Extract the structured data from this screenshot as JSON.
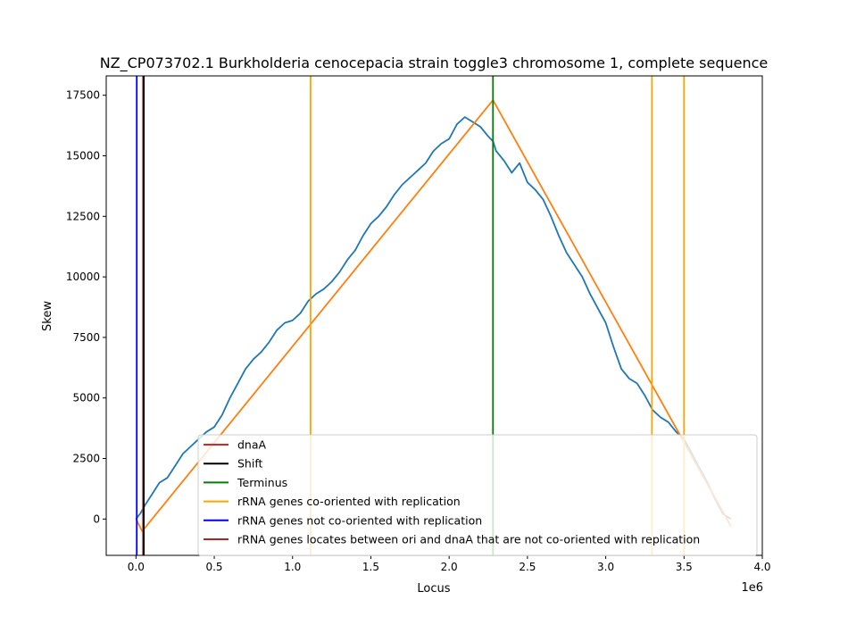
{
  "chart_data": {
    "type": "line",
    "title": "NZ_CP073702.1 Burkholderia cenocepacia strain toggle3 chromosome 1, complete sequence",
    "xlabel": "Locus",
    "ylabel": "Skew",
    "x_offset_label": "1e6",
    "xlim": [
      -0.19,
      4.0
    ],
    "ylim": [
      -1500,
      18300
    ],
    "x_ticks": [
      0.0,
      0.5,
      1.0,
      1.5,
      2.0,
      2.5,
      3.0,
      3.5,
      4.0
    ],
    "x_tick_labels": [
      "0.0",
      "0.5",
      "1.0",
      "1.5",
      "2.0",
      "2.5",
      "3.0",
      "3.5",
      "4.0"
    ],
    "y_ticks": [
      0,
      2500,
      5000,
      7500,
      10000,
      12500,
      15000,
      17500
    ],
    "y_tick_labels": [
      "0",
      "2500",
      "5000",
      "7500",
      "10000",
      "12500",
      "15000",
      "17500"
    ],
    "grid": false,
    "legend_position": "lower-right",
    "series": [
      {
        "name": "",
        "color": "#1f77b4",
        "x": [
          0.0,
          0.03,
          0.06,
          0.1,
          0.15,
          0.2,
          0.25,
          0.3,
          0.35,
          0.4,
          0.45,
          0.5,
          0.55,
          0.6,
          0.65,
          0.7,
          0.75,
          0.8,
          0.85,
          0.9,
          0.95,
          1.0,
          1.05,
          1.1,
          1.15,
          1.2,
          1.25,
          1.3,
          1.35,
          1.4,
          1.45,
          1.5,
          1.55,
          1.6,
          1.65,
          1.7,
          1.75,
          1.8,
          1.85,
          1.9,
          1.95,
          2.0,
          2.05,
          2.1,
          2.15,
          2.2,
          2.25,
          2.28,
          2.3,
          2.35,
          2.4,
          2.45,
          2.5,
          2.55,
          2.6,
          2.65,
          2.7,
          2.75,
          2.8,
          2.85,
          2.9,
          2.95,
          3.0,
          3.05,
          3.1,
          3.15,
          3.2,
          3.25,
          3.3,
          3.35,
          3.4,
          3.45,
          3.5,
          3.55,
          3.6,
          3.65,
          3.7,
          3.75,
          3.8
        ],
        "y": [
          0,
          250,
          600,
          1000,
          1500,
          1700,
          2200,
          2700,
          3000,
          3300,
          3600,
          3800,
          4300,
          5000,
          5600,
          6200,
          6600,
          6900,
          7300,
          7800,
          8100,
          8200,
          8500,
          9000,
          9300,
          9500,
          9800,
          10200,
          10700,
          11100,
          11700,
          12200,
          12500,
          12900,
          13400,
          13800,
          14100,
          14400,
          14700,
          15200,
          15500,
          15700,
          16300,
          16600,
          16400,
          16200,
          15800,
          15600,
          15200,
          14800,
          14300,
          14700,
          13900,
          13600,
          13200,
          12500,
          11700,
          11000,
          10500,
          10000,
          9300,
          8700,
          8100,
          7100,
          6200,
          5800,
          5600,
          5100,
          4500,
          4200,
          4000,
          3600,
          3300,
          2700,
          2100,
          1500,
          800,
          200,
          0
        ]
      },
      {
        "name": "",
        "color": "#ff7f0e",
        "x": [
          0.0,
          0.04,
          2.28,
          3.8
        ],
        "y": [
          0,
          -500,
          17300,
          -300
        ]
      }
    ],
    "vertical_lines": [
      {
        "name": "dnaA",
        "x": 0.045,
        "color": "#d62728"
      },
      {
        "name": "Shift",
        "x": 0.05,
        "color": "#000000"
      },
      {
        "name": "Terminus",
        "x": 2.28,
        "color": "#008000"
      },
      {
        "name": "rRNA genes co-oriented with replication",
        "x": 1.115,
        "color": "#ffa500"
      },
      {
        "name": "rRNA genes co-oriented with replication",
        "x": 3.295,
        "color": "#ffa500"
      },
      {
        "name": "rRNA genes co-oriented with replication",
        "x": 3.5,
        "color": "#ffa500"
      },
      {
        "name": "rRNA genes not co-oriented with replication",
        "x": 0.005,
        "color": "#0000ff"
      }
    ],
    "legend": [
      {
        "label": "dnaA",
        "color": "#d62728"
      },
      {
        "label": "Shift",
        "color": "#000000"
      },
      {
        "label": "Terminus",
        "color": "#008000"
      },
      {
        "label": "rRNA genes co-oriented with replication",
        "color": "#ffa500"
      },
      {
        "label": "rRNA genes not co-oriented with replication",
        "color": "#0000ff"
      },
      {
        "label": "rRNA genes locates between ori and dnaA that are not co-oriented with replication",
        "color": "#b22222"
      }
    ]
  }
}
